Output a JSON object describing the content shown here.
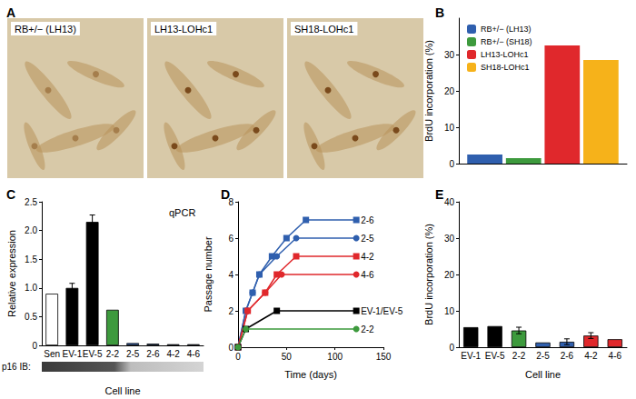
{
  "chart_data": [
    {
      "type": "image",
      "title": "A",
      "captions": [
        "RB+/− (LH13)",
        "LH13-LOHc1",
        "SH18-LOHc1"
      ]
    },
    {
      "type": "bar",
      "title": "B",
      "categories": [
        null
      ],
      "series": [
        {
          "name": "RB+/− (LH13)",
          "color": "#2f5fae",
          "values": [
            2.5
          ]
        },
        {
          "name": "RB+/− (SH18)",
          "color": "#3d9a3d",
          "values": [
            1.5
          ]
        },
        {
          "name": "LH13-LOHc1",
          "color": "#e0282c",
          "values": [
            32.5
          ]
        },
        {
          "name": "SH18-LOHc1",
          "color": "#f6b21a",
          "values": [
            28.5
          ]
        }
      ],
      "ylabel": "BrdU incorporation (%)",
      "ylim": [
        0,
        40
      ],
      "yticks": [
        0,
        10,
        20,
        30
      ],
      "legend": "upper left",
      "tick_labels": "y",
      "grid": false
    },
    {
      "type": "bar",
      "title": "C",
      "categories": [
        "Sen",
        "EV-1",
        "EV-5",
        "2-2",
        "2-5",
        "2-6",
        "4-2",
        "4-6"
      ],
      "values": [
        0.9,
        1.0,
        2.15,
        0.62,
        0.04,
        0.03,
        0.02,
        0.02
      ],
      "errors": [
        null,
        0.08,
        0.12,
        null,
        null,
        null,
        null,
        null
      ],
      "colors": [
        "#ffffff",
        "#000000",
        "#000000",
        "#3d9a3d",
        "#2f5fae",
        "#2f5fae",
        "#2f5fae",
        "#2f5fae"
      ],
      "ylabel": "Relative expression",
      "xlabel": "Cell line",
      "ylim": [
        0,
        2.5
      ],
      "yticks": [
        0,
        0.5,
        {
          "value": 1,
          "label": "1.0"
        },
        1.5,
        {
          "value": 2,
          "label": "2.0"
        },
        2.5
      ],
      "annotations": [
        "qPCR",
        "p16 IB:"
      ],
      "grid": false
    },
    {
      "type": "line",
      "title": "D",
      "xlabel": "Time (days)",
      "ylabel": "Passage number",
      "xlim": [
        0,
        150
      ],
      "xticks": [
        0,
        50,
        100,
        150
      ],
      "ylim": [
        0,
        8
      ],
      "yticks": [
        0,
        2,
        4,
        6,
        8
      ],
      "grid": false,
      "series": [
        {
          "name": "2-6",
          "color": "#2f5fae",
          "marker": "square",
          "x": [
            0,
            8,
            15,
            22,
            35,
            50,
            70,
            122
          ],
          "values": [
            0,
            2,
            3,
            4,
            5,
            6,
            7,
            7
          ]
        },
        {
          "name": "2-5",
          "color": "#2f5fae",
          "marker": "circle",
          "x": [
            0,
            8,
            15,
            22,
            40,
            60,
            122
          ],
          "values": [
            0,
            2,
            3,
            4,
            5,
            6,
            6
          ]
        },
        {
          "name": "4-2",
          "color": "#e0282c",
          "marker": "square",
          "x": [
            0,
            10,
            28,
            40,
            60,
            122
          ],
          "values": [
            0,
            2,
            3,
            4,
            5,
            5
          ]
        },
        {
          "name": "4-6",
          "color": "#e0282c",
          "marker": "circle",
          "x": [
            0,
            10,
            28,
            45,
            122
          ],
          "values": [
            0,
            2,
            3,
            4,
            4
          ]
        },
        {
          "name": "EV-1/EV-5",
          "color": "#000000",
          "marker": "square",
          "x": [
            0,
            8,
            40,
            122
          ],
          "values": [
            0,
            1,
            2,
            2
          ]
        },
        {
          "name": "2-2",
          "color": "#3d9a3d",
          "marker": "circle",
          "x": [
            0,
            8,
            122
          ],
          "values": [
            0,
            1,
            1
          ]
        }
      ]
    },
    {
      "type": "bar",
      "title": "E",
      "categories": [
        "EV-1",
        "EV-5",
        "2-2",
        "2-5",
        "2-6",
        "4-2",
        "4-6"
      ],
      "values": [
        5.5,
        5.8,
        4.6,
        1.3,
        1.5,
        3.2,
        2.2
      ],
      "errors": [
        null,
        null,
        0.9,
        null,
        0.8,
        0.8,
        null
      ],
      "colors": [
        "#000000",
        "#000000",
        "#3d9a3d",
        "#2f5fae",
        "#2f5fae",
        "#e0282c",
        "#e0282c"
      ],
      "ylabel": "BrdU incorporation (%)",
      "xlabel": "Cell line",
      "ylim": [
        0,
        40
      ],
      "yticks": [
        0,
        10,
        20,
        30,
        40
      ],
      "grid": false
    }
  ]
}
